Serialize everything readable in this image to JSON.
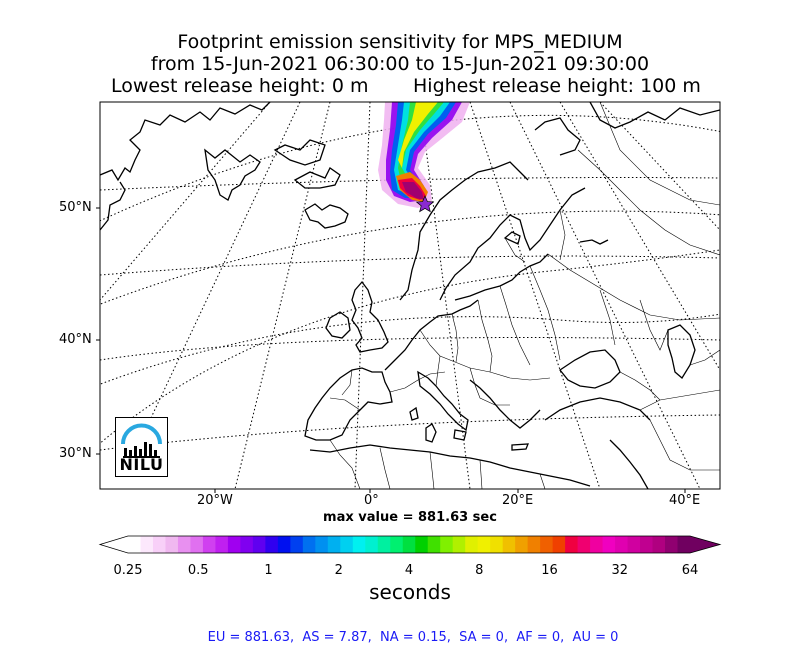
{
  "chart_data": {
    "type": "heatmap",
    "title_lines": [
      "Footprint emission sensitivity for MPS_MEDIUM",
      "from 15-Jun-2021 06:30:00 to 15-Jun-2021 09:30:00"
    ],
    "title_left": "Lowest release height: 0 m",
    "title_right": "Highest release height: 100 m",
    "lat_ticks": [
      "50°N",
      "40°N",
      "30°N"
    ],
    "lon_ticks": [
      "20°W",
      "0°",
      "20°E",
      "40°E"
    ],
    "max_label": "max value = 881.63 sec",
    "colorbar_ticks": [
      "0.25",
      "0.5",
      "1",
      "2",
      "4",
      "8",
      "16",
      "32",
      "64"
    ],
    "colorbar_unit": "seconds",
    "colorbar_scale": "log",
    "colorbar_range": [
      0.25,
      64
    ],
    "release_site_marker": "star",
    "footer": "EU = 881.63,  AS = 7.87,  NA = 0.15,  SA = 0,  AF = 0,  AU = 0",
    "region_values": [
      {
        "region": "EU",
        "value": 881.63
      },
      {
        "region": "AS",
        "value": 7.87
      },
      {
        "region": "NA",
        "value": 0.15
      },
      {
        "region": "SA",
        "value": 0
      },
      {
        "region": "AF",
        "value": 0
      },
      {
        "region": "AU",
        "value": 0
      }
    ],
    "logo_text": "NILU"
  },
  "colors": {
    "colorbar": [
      "#ffffff",
      "#fce8fc",
      "#f8d0f8",
      "#f0b8f0",
      "#e890f0",
      "#e070f0",
      "#d040f0",
      "#c020f0",
      "#a000f0",
      "#8000f0",
      "#6000f0",
      "#3000f0",
      "#0010f0",
      "#0040f0",
      "#0070f0",
      "#0090f0",
      "#00b0f0",
      "#00d0f0",
      "#00f0f0",
      "#00f0d0",
      "#00f0a0",
      "#00f070",
      "#00e040",
      "#00d000",
      "#40e000",
      "#80f000",
      "#b0f000",
      "#e0f000",
      "#f0f000",
      "#f0e000",
      "#f0c000",
      "#f0a000",
      "#f08000",
      "#f06000",
      "#f04000",
      "#f00040",
      "#f00070",
      "#f000a0",
      "#f000c0",
      "#e000b0",
      "#d000a0",
      "#c00090",
      "#b00080",
      "#900070",
      "#700060"
    ],
    "footer_text": "#1a1af5",
    "logo_arc": "#29a8e0"
  }
}
